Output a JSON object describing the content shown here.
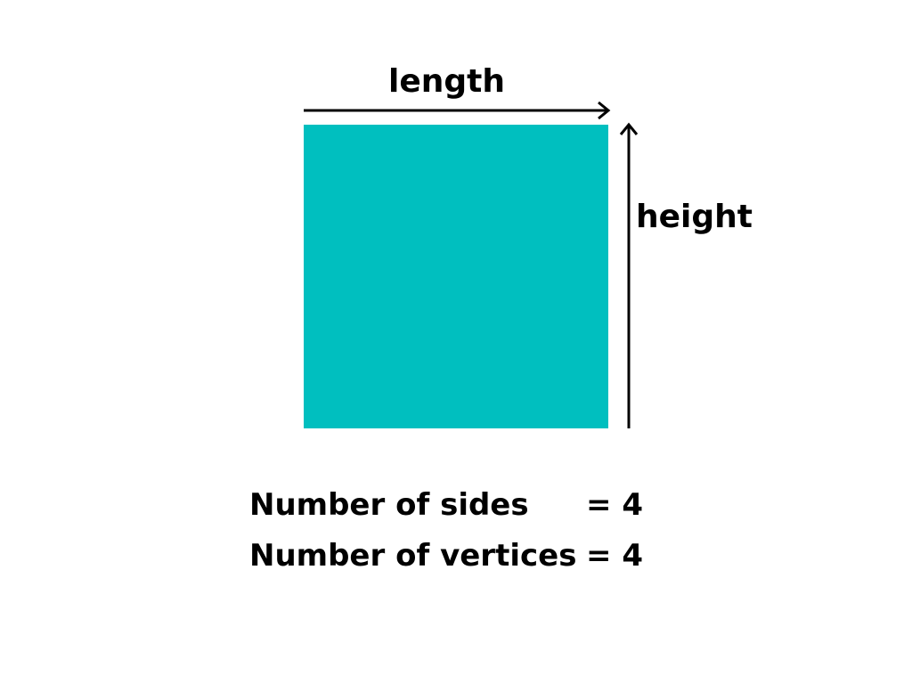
{
  "shape": {
    "name": "square",
    "fill_color": "#00BFBF"
  },
  "labels": {
    "length": "length",
    "height": "height"
  },
  "properties": [
    {
      "name": "Number of sides",
      "value": "= 4"
    },
    {
      "name": "Number of vertices",
      "value": "= 4"
    }
  ],
  "colors": {
    "arrow": "#000000",
    "text": "#000000",
    "background": "#FFFFFF"
  },
  "icons": {
    "length_arrow": "right-arrow-icon",
    "height_arrow": "up-arrow-icon"
  }
}
